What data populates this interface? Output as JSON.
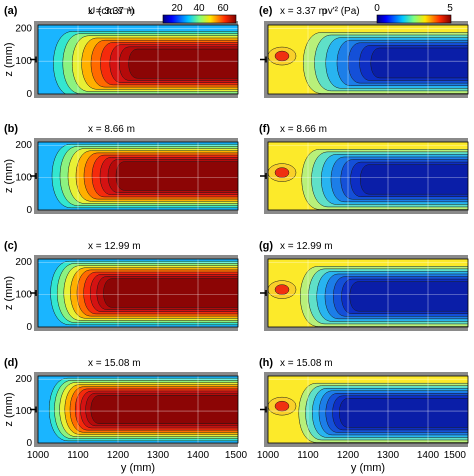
{
  "chart_data": [
    {
      "type": "heatmap",
      "panel": "(a)",
      "annotation": "x = 3.37 m",
      "variable": "U",
      "quantity": "mean",
      "x_km": 3.37
    },
    {
      "type": "heatmap",
      "panel": "(b)",
      "annotation": "x = 8.66 m",
      "variable": "U",
      "quantity": "mean",
      "x_km": 8.66
    },
    {
      "type": "heatmap",
      "panel": "(c)",
      "annotation": "x = 12.99 m",
      "variable": "U",
      "quantity": "mean",
      "x_km": 12.99
    },
    {
      "type": "heatmap",
      "panel": "(d)",
      "annotation": "x = 15.08 m",
      "variable": "U",
      "quantity": "mean",
      "x_km": 15.08
    },
    {
      "type": "heatmap",
      "panel": "(e)",
      "annotation": "x = 3.37 m",
      "variable": "ρv'²",
      "quantity": "stress",
      "x_km": 3.37
    },
    {
      "type": "heatmap",
      "panel": "(f)",
      "annotation": "x = 8.66 m",
      "variable": "ρv'²",
      "quantity": "stress",
      "x_km": 8.66
    },
    {
      "type": "heatmap",
      "panel": "(g)",
      "annotation": "x = 12.99 m",
      "variable": "ρv'²",
      "quantity": "stress",
      "x_km": 12.99
    },
    {
      "type": "heatmap",
      "panel": "(h)",
      "annotation": "x = 15.08 m",
      "variable": "ρv'²",
      "quantity": "stress",
      "x_km": 15.08
    }
  ],
  "axes": {
    "xlabel": "y (mm)",
    "ylabel": "z (mm)",
    "x_ticks": [
      "1000",
      "1100",
      "1200",
      "1300",
      "1400",
      "1500"
    ],
    "y_ticks": [
      "0",
      "100",
      "200"
    ],
    "xlim": [
      1000,
      1500
    ],
    "ylim": [
      0,
      210
    ]
  },
  "colorbars": {
    "left": {
      "label": "U (cm.s⁻¹)",
      "ticks": [
        "20",
        "40",
        "60"
      ],
      "range": [
        10,
        70
      ]
    },
    "right": {
      "label": "ρv'² (Pa)",
      "ticks": [
        "0",
        "5"
      ],
      "range": [
        0,
        6
      ]
    }
  }
}
